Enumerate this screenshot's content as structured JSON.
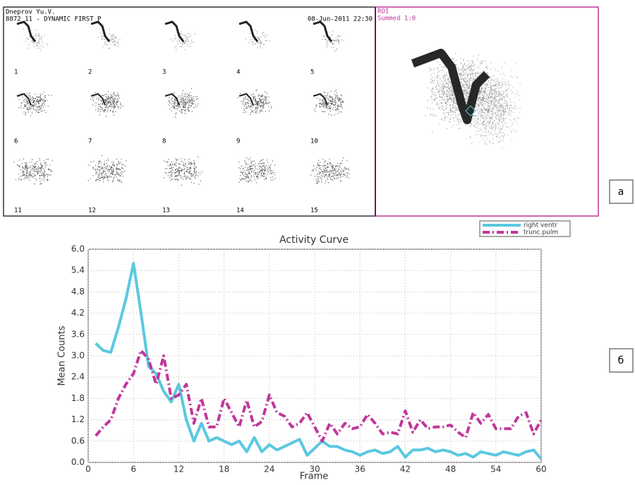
{
  "image_panel": {
    "header_name": "Dneprov Yu.V.",
    "header_study": "8872 11 - DYNAMIC FIRST P",
    "header_date": "08-Jun-2011 22:30",
    "roi_label": "ROI",
    "roi_summed": "Summed 1:0",
    "frame_labels": [
      "1",
      "2",
      "3",
      "4",
      "5",
      "6",
      "7",
      "8",
      "9",
      "10",
      "11",
      "12",
      "13",
      "14",
      "15"
    ],
    "panel_label": "a"
  },
  "chart_panel_label": "б",
  "chart_data": {
    "type": "line",
    "title": "Activity Curve",
    "x_label": "Frame",
    "y_label": "Mean Counts",
    "x": [
      1,
      2,
      3,
      4,
      5,
      6,
      7,
      8,
      9,
      10,
      11,
      12,
      13,
      14,
      15,
      16,
      17,
      18,
      19,
      20,
      21,
      22,
      23,
      24,
      25,
      26,
      27,
      28,
      29,
      30,
      31,
      32,
      33,
      34,
      35,
      36,
      37,
      38,
      39,
      40,
      41,
      42,
      43,
      44,
      45,
      46,
      47,
      48,
      49,
      50,
      51,
      52,
      53,
      54,
      55,
      56,
      57,
      58,
      59,
      60
    ],
    "series": [
      {
        "name": "right ventr",
        "color": "#5bc8e0",
        "values": [
          3.35,
          3.15,
          3.1,
          3.8,
          4.6,
          5.6,
          4.2,
          2.7,
          2.5,
          2.0,
          1.7,
          2.2,
          1.2,
          0.6,
          1.1,
          0.6,
          0.7,
          0.6,
          0.5,
          0.6,
          0.3,
          0.7,
          0.3,
          0.5,
          0.35,
          0.45,
          0.55,
          0.65,
          0.2,
          0.4,
          0.6,
          0.45,
          0.45,
          0.35,
          0.3,
          0.2,
          0.3,
          0.35,
          0.25,
          0.3,
          0.45,
          0.15,
          0.35,
          0.35,
          0.4,
          0.3,
          0.35,
          0.3,
          0.2,
          0.25,
          0.15,
          0.3,
          0.25,
          0.2,
          0.3,
          0.25,
          0.2,
          0.3,
          0.35,
          0.1
        ]
      },
      {
        "name": "trunc.pulm",
        "color": "#c0379a",
        "values": [
          0.75,
          1.0,
          1.2,
          1.8,
          2.2,
          2.5,
          3.15,
          2.9,
          2.2,
          3.0,
          1.8,
          1.9,
          2.2,
          1.1,
          1.8,
          1.0,
          1.0,
          1.8,
          1.4,
          1.0,
          1.75,
          1.0,
          1.15,
          1.9,
          1.4,
          1.3,
          1.0,
          1.1,
          1.4,
          1.0,
          0.6,
          1.1,
          0.8,
          1.1,
          0.95,
          1.0,
          1.35,
          1.1,
          0.8,
          0.85,
          0.8,
          1.45,
          0.85,
          1.2,
          0.95,
          1.0,
          1.0,
          1.05,
          0.85,
          0.7,
          1.4,
          1.1,
          1.35,
          0.95,
          0.95,
          0.95,
          1.3,
          1.4,
          0.8,
          1.2
        ]
      }
    ],
    "xlim": [
      0,
      60
    ],
    "xticks": [
      0,
      6,
      12,
      18,
      24,
      30,
      36,
      42,
      48,
      54,
      60
    ],
    "ylim": [
      0,
      6
    ],
    "yticks": [
      {
        "value": 0,
        "label": "0.0"
      },
      0.6,
      1.2,
      1.8,
      2.4,
      {
        "value": 3,
        "label": "3.0"
      },
      3.6,
      4.2,
      4.8,
      5.4,
      {
        "value": 6,
        "label": "6.0"
      }
    ],
    "grid": true,
    "legend": "top-right"
  }
}
